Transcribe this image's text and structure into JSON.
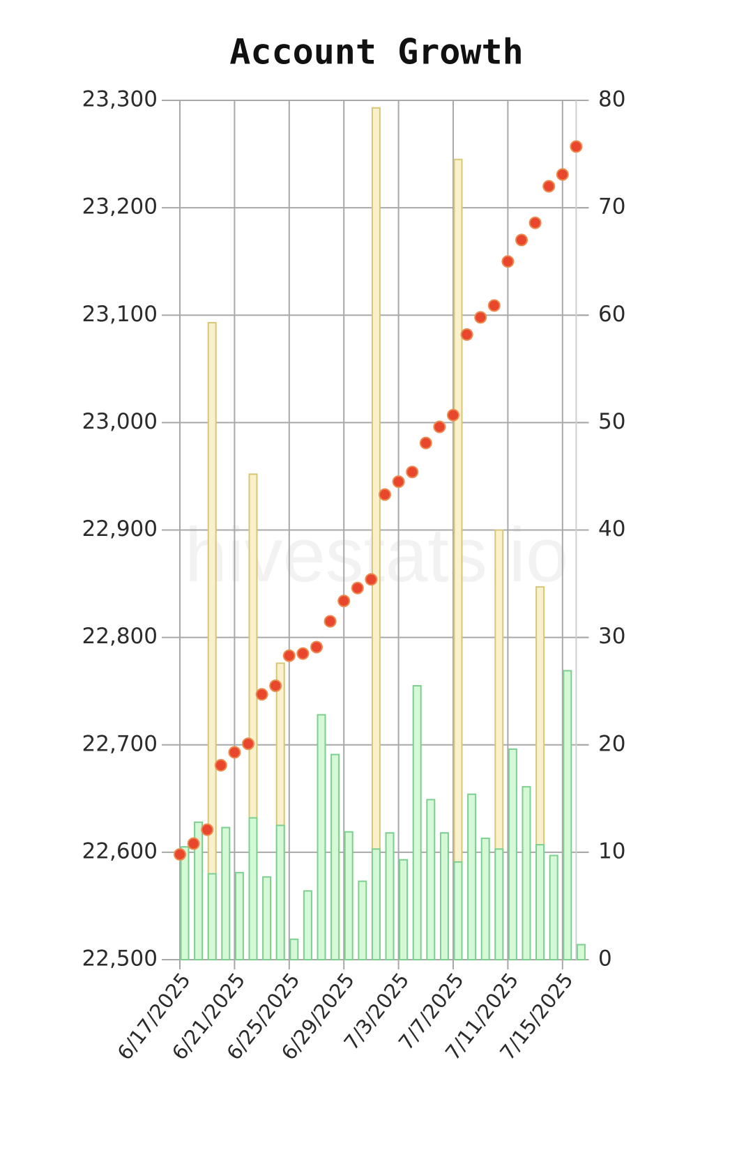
{
  "chart_data": {
    "type": "combo",
    "title": "Account Growth",
    "watermark": "hivestats.io",
    "categories": [
      "6/17/2025",
      null,
      null,
      null,
      "6/21/2025",
      null,
      null,
      null,
      "6/25/2025",
      null,
      null,
      null,
      "6/29/2025",
      null,
      null,
      null,
      "7/3/2025",
      null,
      null,
      null,
      "7/7/2025",
      null,
      null,
      null,
      "7/11/2025",
      null,
      null,
      null,
      "7/15/2025",
      null
    ],
    "ylim": [
      22500,
      23300
    ],
    "yticks": [
      {
        "value": 22500,
        "label": "22,500"
      },
      {
        "value": 22600,
        "label": "22,600"
      },
      {
        "value": 22700,
        "label": "22,700"
      },
      {
        "value": 22800,
        "label": "22,800"
      },
      {
        "value": 22900,
        "label": "22,900"
      },
      {
        "value": 23000,
        "label": "23,000"
      },
      {
        "value": 23100,
        "label": "23,100"
      },
      {
        "value": 23200,
        "label": "23,200"
      },
      {
        "value": 23300,
        "label": "23,300"
      }
    ],
    "y2lim": [
      0,
      80
    ],
    "y2ticks": [
      0,
      10,
      20,
      30,
      40,
      50,
      60,
      70,
      80
    ],
    "grid": true,
    "series": [
      {
        "type": "bar",
        "axis": "y2",
        "color": "#f8f1cc",
        "edge_color": "#d8c677",
        "values": [
          null,
          null,
          59.3,
          null,
          null,
          45.2,
          null,
          27.6,
          null,
          null,
          null,
          null,
          null,
          null,
          79.3,
          null,
          null,
          null,
          null,
          null,
          74.5,
          null,
          null,
          40.0,
          null,
          null,
          34.7,
          null,
          null,
          null
        ]
      },
      {
        "type": "bar",
        "axis": "y2",
        "color": "#d5f8d6",
        "edge_color": "#7ccf8f",
        "values": [
          10.5,
          12.8,
          8.0,
          12.3,
          8.1,
          13.2,
          7.7,
          12.5,
          1.9,
          6.4,
          22.8,
          19.1,
          11.9,
          7.3,
          10.3,
          11.8,
          9.3,
          25.5,
          14.9,
          11.8,
          9.1,
          15.4,
          11.3,
          10.3,
          19.6,
          16.1,
          10.7,
          9.7,
          26.9,
          1.4
        ]
      },
      {
        "type": "line",
        "color": "#ec8a50",
        "marker_color": "#e8462d",
        "values": [
          22598,
          22608,
          22621,
          22681,
          22693,
          22701,
          22747,
          22755,
          22783,
          22785,
          22791,
          22815,
          22834,
          22846,
          22854,
          22933,
          22945,
          22954,
          22981,
          22996,
          23007,
          23082,
          23098,
          23109,
          23150,
          23170,
          23186,
          23220,
          23231,
          23257
        ]
      }
    ]
  }
}
